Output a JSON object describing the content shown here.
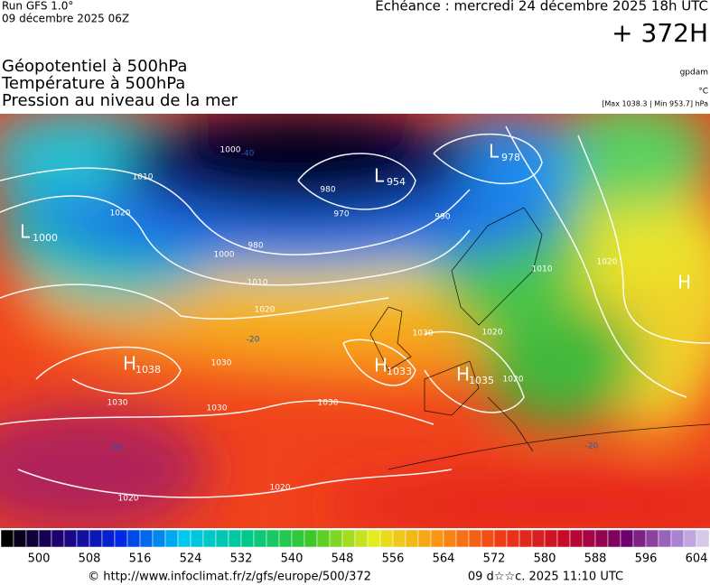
{
  "header": {
    "run": "Run GFS 1.0°",
    "run_date": "09 décembre 2025 06Z",
    "valid": "Echéance : mercredi 24 décembre 2025 18h UTC",
    "lead": "+ 372H",
    "titles": [
      "Géopotentiel à 500hPa",
      "Température à 500hPa",
      "Pression au niveau de la mer"
    ],
    "units": [
      "gpdam",
      "°C",
      "[Max 1038.3 | Min 953.7] hPa"
    ]
  },
  "centers": [
    {
      "letter": "L",
      "value": "1000"
    },
    {
      "letter": "H",
      "value": "1038"
    },
    {
      "letter": "L",
      "value": "954"
    },
    {
      "letter": "L",
      "value": "978"
    },
    {
      "letter": "H",
      "value": "1033"
    },
    {
      "letter": "H",
      "value": "1035"
    },
    {
      "letter": "H"
    }
  ],
  "contour_labels": [
    1010,
    1020,
    1000,
    -40,
    980,
    970,
    1000,
    980,
    1010,
    1020,
    -20,
    1030,
    1030,
    1030,
    1030,
    1020,
    1020,
    990,
    1010,
    1020,
    1020,
    1030,
    1020,
    -20,
    -30
  ],
  "colorbar": {
    "ticks": [
      500,
      508,
      516,
      524,
      532,
      540,
      548,
      556,
      564,
      572,
      580,
      588,
      596,
      604
    ]
  },
  "footer": {
    "source": "© http://www.infoclimat.fr/z/gfs/europe/500/372",
    "generated": "09 d☆☆c. 2025 11:10 UTC"
  }
}
